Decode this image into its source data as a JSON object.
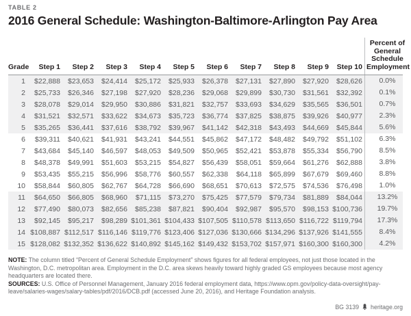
{
  "header": {
    "table_label": "TABLE 2",
    "title": "2016 General Schedule: Washington-Baltimore-Arlington Pay Area"
  },
  "chart_data": {
    "type": "table",
    "title": "2016 General Schedule: Washington-Baltimore-Arlington Pay Area",
    "columns": [
      "Grade",
      "Step 1",
      "Step 2",
      "Step 3",
      "Step 4",
      "Step 5",
      "Step 6",
      "Step 7",
      "Step 8",
      "Step 9",
      "Step 10",
      "Percent of General Schedule Employment"
    ],
    "rows": [
      {
        "grade": "1",
        "steps": [
          "$22,888",
          "$23,653",
          "$24,414",
          "$25,172",
          "$25,933",
          "$26,378",
          "$27,131",
          "$27,890",
          "$27,920",
          "$28,626"
        ],
        "percent": "0.0%"
      },
      {
        "grade": "2",
        "steps": [
          "$25,733",
          "$26,346",
          "$27,198",
          "$27,920",
          "$28,236",
          "$29,068",
          "$29,899",
          "$30,730",
          "$31,561",
          "$32,392"
        ],
        "percent": "0.1%"
      },
      {
        "grade": "3",
        "steps": [
          "$28,078",
          "$29,014",
          "$29,950",
          "$30,886",
          "$31,821",
          "$32,757",
          "$33,693",
          "$34,629",
          "$35,565",
          "$36,501"
        ],
        "percent": "0.7%"
      },
      {
        "grade": "4",
        "steps": [
          "$31,521",
          "$32,571",
          "$33,622",
          "$34,673",
          "$35,723",
          "$36,774",
          "$37,825",
          "$38,875",
          "$39,926",
          "$40,977"
        ],
        "percent": "2.3%"
      },
      {
        "grade": "5",
        "steps": [
          "$35,265",
          "$36,441",
          "$37,616",
          "$38,792",
          "$39,967",
          "$41,142",
          "$42,318",
          "$43,493",
          "$44,669",
          "$45,844"
        ],
        "percent": "5.6%"
      },
      {
        "grade": "6",
        "steps": [
          "$39,311",
          "$40,621",
          "$41,931",
          "$43,241",
          "$44,551",
          "$45,862",
          "$47,172",
          "$48,482",
          "$49,792",
          "$51,102"
        ],
        "percent": "6.3%"
      },
      {
        "grade": "7",
        "steps": [
          "$43,684",
          "$45,140",
          "$46,597",
          "$48,053",
          "$49,509",
          "$50,965",
          "$52,421",
          "$53,878",
          "$55,334",
          "$56,790"
        ],
        "percent": "8.5%"
      },
      {
        "grade": "8",
        "steps": [
          "$48,378",
          "$49,991",
          "$51,603",
          "$53,215",
          "$54,827",
          "$56,439",
          "$58,051",
          "$59,664",
          "$61,276",
          "$62,888"
        ],
        "percent": "3.8%"
      },
      {
        "grade": "9",
        "steps": [
          "$53,435",
          "$55,215",
          "$56,996",
          "$58,776",
          "$60,557",
          "$62,338",
          "$64,118",
          "$65,899",
          "$67,679",
          "$69,460"
        ],
        "percent": "8.8%"
      },
      {
        "grade": "10",
        "steps": [
          "$58,844",
          "$60,805",
          "$62,767",
          "$64,728",
          "$66,690",
          "$68,651",
          "$70,613",
          "$72,575",
          "$74,536",
          "$76,498"
        ],
        "percent": "1.0%"
      },
      {
        "grade": "11",
        "steps": [
          "$64,650",
          "$66,805",
          "$68,960",
          "$71,115",
          "$73,270",
          "$75,425",
          "$77,579",
          "$79,734",
          "$81,889",
          "$84,044"
        ],
        "percent": "13.2%"
      },
      {
        "grade": "12",
        "steps": [
          "$77,490",
          "$80,073",
          "$82,656",
          "$85,238",
          "$87,821",
          "$90,404",
          "$92,987",
          "$95,570",
          "$98,153",
          "$100,736"
        ],
        "percent": "19.7%"
      },
      {
        "grade": "13",
        "steps": [
          "$92,145",
          "$95,217",
          "$98,289",
          "$101,361",
          "$104,433",
          "$107,505",
          "$110,578",
          "$113,650",
          "$116,722",
          "$119,794"
        ],
        "percent": "17.3%"
      },
      {
        "grade": "14",
        "steps": [
          "$108,887",
          "$112,517",
          "$116,146",
          "$119,776",
          "$123,406",
          "$127,036",
          "$130,666",
          "$134,296",
          "$137,926",
          "$141,555"
        ],
        "percent": "8.4%"
      },
      {
        "grade": "15",
        "steps": [
          "$128,082",
          "$132,352",
          "$136,622",
          "$140,892",
          "$145,162",
          "$149,432",
          "$153,702",
          "$157,971",
          "$160,300",
          "$160,300"
        ],
        "percent": "4.2%"
      }
    ]
  },
  "notes": {
    "note_label": "NOTE:",
    "note_text": " The column titled “Percent of General Schedule Employment” shows figures for all federal employees, not just those located in the Washington, D.C. metropolitan area. Employment in the D.C. area skews heavily toward highly graded GS employees because most agency headquarters are located there.",
    "sources_label": "SOURCES:",
    "sources_text": " U.S. Office of Personnel Management, January 2016 federal employment data, https://www.opm.gov/policy-data-oversight/pay-leave/salaries-wages/salary-tables/pdf/2016/DCB.pdf (accessed June 20, 2016), and Heritage Foundation analysis."
  },
  "footer": {
    "report_id": "BG 3139",
    "site": "heritage.org"
  }
}
